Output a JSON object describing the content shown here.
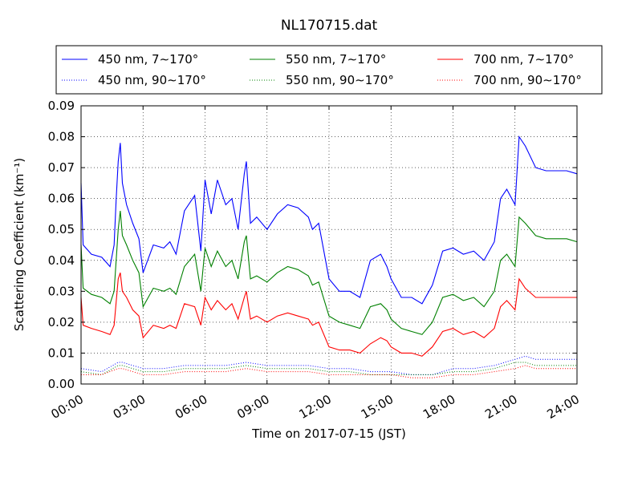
{
  "chart_data": {
    "type": "line",
    "title": "NL170715.dat",
    "xlabel": "Time on 2017-07-15 (JST)",
    "ylabel": "Scattering Coefficient (km⁻¹)",
    "x_tick_labels": [
      "00:00",
      "03:00",
      "06:00",
      "09:00",
      "12:00",
      "15:00",
      "18:00",
      "21:00",
      "24:00"
    ],
    "y_tick_labels": [
      "0.00",
      "0.01",
      "0.02",
      "0.03",
      "0.04",
      "0.05",
      "0.06",
      "0.07",
      "0.08",
      "0.09"
    ],
    "x_ticks_hours": [
      0,
      3,
      6,
      9,
      12,
      15,
      18,
      21,
      24
    ],
    "y_ticks": [
      0,
      0.01,
      0.02,
      0.03,
      0.04,
      0.05,
      0.06,
      0.07,
      0.08,
      0.09
    ],
    "xlim_hours": [
      0,
      24
    ],
    "ylim": [
      0,
      0.09
    ],
    "grid": true,
    "legend_position": "top, above plot",
    "series": [
      {
        "name": "450 nm, 7∼170°",
        "color": "#0000ff",
        "style": "solid",
        "x": [
          0,
          0.1,
          0.5,
          1.0,
          1.4,
          1.6,
          1.7,
          1.8,
          1.9,
          2.0,
          2.2,
          2.5,
          2.8,
          3.0,
          3.5,
          4.0,
          4.3,
          4.6,
          5.0,
          5.5,
          5.8,
          6.0,
          6.3,
          6.6,
          7.0,
          7.3,
          7.6,
          7.9,
          8.0,
          8.2,
          8.5,
          9.0,
          9.5,
          10.0,
          10.5,
          11.0,
          11.2,
          11.5,
          12.0,
          12.5,
          13.0,
          13.5,
          14.0,
          14.5,
          14.8,
          15.0,
          15.5,
          16.0,
          16.5,
          17.0,
          17.5,
          18.0,
          18.5,
          19.0,
          19.5,
          20.0,
          20.3,
          20.6,
          21.0,
          21.2,
          21.5,
          22.0,
          22.5,
          23.0,
          23.5,
          24.0
        ],
        "y": [
          0.065,
          0.045,
          0.042,
          0.041,
          0.038,
          0.045,
          0.06,
          0.072,
          0.078,
          0.065,
          0.058,
          0.052,
          0.047,
          0.036,
          0.045,
          0.044,
          0.046,
          0.042,
          0.056,
          0.061,
          0.043,
          0.066,
          0.055,
          0.066,
          0.058,
          0.06,
          0.05,
          0.068,
          0.072,
          0.052,
          0.054,
          0.05,
          0.055,
          0.058,
          0.057,
          0.054,
          0.05,
          0.052,
          0.034,
          0.03,
          0.03,
          0.028,
          0.04,
          0.042,
          0.038,
          0.034,
          0.028,
          0.028,
          0.026,
          0.032,
          0.043,
          0.044,
          0.042,
          0.043,
          0.04,
          0.046,
          0.06,
          0.063,
          0.058,
          0.08,
          0.077,
          0.07,
          0.069,
          0.069,
          0.069,
          0.068
        ]
      },
      {
        "name": "450 nm, 90∼170°",
        "color": "#0000ff",
        "style": "dotted",
        "x": [
          0,
          1.0,
          1.8,
          2.0,
          3.0,
          4.0,
          5.0,
          6.0,
          7.0,
          8.0,
          9.0,
          10.0,
          11.0,
          12.0,
          13.0,
          14.0,
          15.0,
          16.0,
          17.0,
          18.0,
          19.0,
          20.0,
          21.0,
          21.5,
          22.0,
          23.0,
          24.0
        ],
        "y": [
          0.005,
          0.004,
          0.007,
          0.007,
          0.005,
          0.005,
          0.006,
          0.006,
          0.006,
          0.007,
          0.006,
          0.006,
          0.006,
          0.005,
          0.005,
          0.004,
          0.004,
          0.003,
          0.003,
          0.005,
          0.005,
          0.006,
          0.008,
          0.009,
          0.008,
          0.008,
          0.008
        ]
      },
      {
        "name": "550 nm, 7∼170°",
        "color": "#008000",
        "style": "solid",
        "x": [
          0,
          0.1,
          0.5,
          1.0,
          1.4,
          1.6,
          1.8,
          1.9,
          2.0,
          2.2,
          2.5,
          2.8,
          3.0,
          3.5,
          4.0,
          4.3,
          4.6,
          5.0,
          5.5,
          5.8,
          6.0,
          6.3,
          6.6,
          7.0,
          7.3,
          7.6,
          7.9,
          8.0,
          8.2,
          8.5,
          9.0,
          9.5,
          10.0,
          10.5,
          11.0,
          11.2,
          11.5,
          12.0,
          12.5,
          13.0,
          13.5,
          14.0,
          14.5,
          14.8,
          15.0,
          15.5,
          16.0,
          16.5,
          17.0,
          17.5,
          18.0,
          18.5,
          19.0,
          19.5,
          20.0,
          20.3,
          20.6,
          21.0,
          21.2,
          21.5,
          22.0,
          22.5,
          23.0,
          23.5,
          24.0
        ],
        "y": [
          0.045,
          0.031,
          0.029,
          0.028,
          0.026,
          0.03,
          0.05,
          0.056,
          0.048,
          0.045,
          0.04,
          0.036,
          0.025,
          0.031,
          0.03,
          0.031,
          0.029,
          0.038,
          0.042,
          0.03,
          0.044,
          0.038,
          0.043,
          0.038,
          0.04,
          0.034,
          0.046,
          0.048,
          0.034,
          0.035,
          0.033,
          0.036,
          0.038,
          0.037,
          0.035,
          0.032,
          0.033,
          0.022,
          0.02,
          0.019,
          0.018,
          0.025,
          0.026,
          0.024,
          0.021,
          0.018,
          0.017,
          0.016,
          0.02,
          0.028,
          0.029,
          0.027,
          0.028,
          0.025,
          0.03,
          0.04,
          0.042,
          0.038,
          0.054,
          0.052,
          0.048,
          0.047,
          0.047,
          0.047,
          0.046
        ]
      },
      {
        "name": "550 nm, 90∼170°",
        "color": "#008000",
        "style": "dotted",
        "x": [
          0,
          1.0,
          1.8,
          2.0,
          3.0,
          4.0,
          5.0,
          6.0,
          7.0,
          8.0,
          9.0,
          10.0,
          11.0,
          12.0,
          13.0,
          14.0,
          15.0,
          16.0,
          17.0,
          18.0,
          19.0,
          20.0,
          21.0,
          21.5,
          22.0,
          23.0,
          24.0
        ],
        "y": [
          0.004,
          0.003,
          0.006,
          0.006,
          0.004,
          0.004,
          0.005,
          0.005,
          0.005,
          0.006,
          0.005,
          0.005,
          0.005,
          0.004,
          0.004,
          0.003,
          0.003,
          0.003,
          0.003,
          0.004,
          0.004,
          0.005,
          0.007,
          0.007,
          0.006,
          0.006,
          0.006
        ]
      },
      {
        "name": "700 nm, 7∼170°",
        "color": "#ff0000",
        "style": "solid",
        "x": [
          0,
          0.1,
          0.5,
          1.0,
          1.4,
          1.6,
          1.8,
          1.9,
          2.0,
          2.2,
          2.5,
          2.8,
          3.0,
          3.5,
          4.0,
          4.3,
          4.6,
          5.0,
          5.5,
          5.8,
          6.0,
          6.3,
          6.6,
          7.0,
          7.3,
          7.6,
          7.9,
          8.0,
          8.2,
          8.5,
          9.0,
          9.5,
          10.0,
          10.5,
          11.0,
          11.2,
          11.5,
          12.0,
          12.5,
          13.0,
          13.5,
          14.0,
          14.5,
          14.8,
          15.0,
          15.5,
          16.0,
          16.5,
          17.0,
          17.5,
          18.0,
          18.5,
          19.0,
          19.5,
          20.0,
          20.3,
          20.6,
          21.0,
          21.2,
          21.5,
          22.0,
          22.5,
          23.0,
          23.5,
          24.0
        ],
        "y": [
          0.028,
          0.019,
          0.018,
          0.017,
          0.016,
          0.019,
          0.034,
          0.036,
          0.03,
          0.028,
          0.024,
          0.022,
          0.015,
          0.019,
          0.018,
          0.019,
          0.018,
          0.026,
          0.025,
          0.019,
          0.028,
          0.024,
          0.027,
          0.024,
          0.026,
          0.021,
          0.028,
          0.03,
          0.021,
          0.022,
          0.02,
          0.022,
          0.023,
          0.022,
          0.021,
          0.019,
          0.02,
          0.012,
          0.011,
          0.011,
          0.01,
          0.013,
          0.015,
          0.014,
          0.012,
          0.01,
          0.01,
          0.009,
          0.012,
          0.017,
          0.018,
          0.016,
          0.017,
          0.015,
          0.018,
          0.025,
          0.027,
          0.024,
          0.034,
          0.031,
          0.028,
          0.028,
          0.028,
          0.028,
          0.028
        ]
      },
      {
        "name": "700 nm, 90∼170°",
        "color": "#ff0000",
        "style": "dotted",
        "x": [
          0,
          1.0,
          1.8,
          2.0,
          3.0,
          4.0,
          5.0,
          6.0,
          7.0,
          8.0,
          9.0,
          10.0,
          11.0,
          12.0,
          13.0,
          14.0,
          15.0,
          16.0,
          17.0,
          18.0,
          19.0,
          20.0,
          21.0,
          21.5,
          22.0,
          23.0,
          24.0
        ],
        "y": [
          0.003,
          0.003,
          0.005,
          0.005,
          0.003,
          0.003,
          0.004,
          0.004,
          0.004,
          0.005,
          0.004,
          0.004,
          0.004,
          0.003,
          0.003,
          0.003,
          0.003,
          0.002,
          0.002,
          0.003,
          0.003,
          0.004,
          0.005,
          0.006,
          0.005,
          0.005,
          0.005
        ]
      }
    ]
  }
}
